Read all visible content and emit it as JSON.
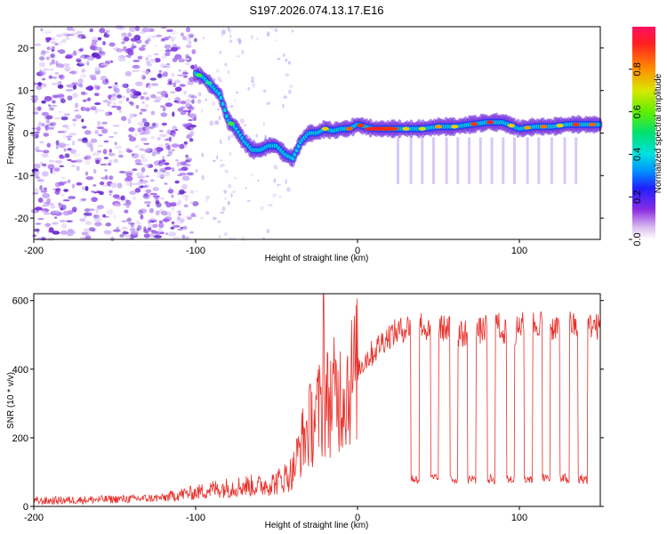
{
  "page_title": "S197.2026.074.13.17.E16",
  "chart_data": [
    {
      "type": "heatmap",
      "name": "spectrogram",
      "title": "S197.2026.074.13.17.E16",
      "xlabel": "Height of straight line (km)",
      "ylabel": "Frequency (Hz)",
      "xlim": [
        -200,
        150
      ],
      "ylim": [
        -25,
        25
      ],
      "x_ticks": [
        -200,
        -100,
        0,
        100
      ],
      "y_ticks": [
        -20,
        -10,
        0,
        10,
        20
      ],
      "colorbar": {
        "label": "Normalized spectral amplitude",
        "range": [
          0,
          1
        ],
        "ticks": [
          0.0,
          0.2,
          0.4,
          0.6,
          0.8
        ]
      },
      "ridge": {
        "description": "dominant frequency track",
        "x": [
          -100,
          -95,
          -90,
          -85,
          -80,
          -75,
          -70,
          -65,
          -60,
          -55,
          -50,
          -45,
          -40,
          -35,
          -30,
          -25,
          -20,
          -15,
          -10,
          -5,
          0,
          10,
          20,
          30,
          40,
          50,
          60,
          70,
          80,
          90,
          100,
          110,
          120,
          130,
          140,
          150
        ],
        "freq": [
          14,
          13,
          11,
          9,
          3,
          1,
          -2,
          -4,
          -4,
          -3,
          -3,
          -5,
          -6,
          -2,
          0,
          0,
          1,
          0.5,
          1,
          1,
          2,
          1,
          1,
          1,
          1,
          1.5,
          1.5,
          2,
          2.5,
          2.5,
          1,
          1.5,
          1.5,
          2,
          2,
          2
        ]
      }
    },
    {
      "type": "line",
      "name": "snr",
      "xlabel": "Height of straight line (km)",
      "ylabel": "SNR (10 * v/v)",
      "xlim": [
        -200,
        150
      ],
      "ylim": [
        0,
        620
      ],
      "x_ticks": [
        -200,
        -100,
        0,
        100
      ],
      "y_ticks": [
        0,
        200,
        400,
        600
      ],
      "series": [
        {
          "name": "SNR",
          "color": "#e8302a",
          "x": [
            -200,
            -180,
            -160,
            -140,
            -120,
            -110,
            -100,
            -90,
            -80,
            -70,
            -60,
            -50,
            -40,
            -35,
            -30,
            -25,
            -20,
            -15,
            -10,
            -5,
            0,
            5,
            10,
            15,
            20,
            25,
            30,
            35,
            40,
            45,
            50,
            55,
            60,
            65,
            70,
            75,
            80,
            85,
            90,
            95,
            100,
            105,
            110,
            115,
            120,
            125,
            130,
            135,
            140,
            145,
            150
          ],
          "values": [
            15,
            18,
            20,
            22,
            25,
            35,
            40,
            50,
            55,
            60,
            60,
            70,
            100,
            180,
            230,
            270,
            300,
            320,
            330,
            360,
            400,
            430,
            450,
            480,
            500,
            510,
            520,
            540,
            530,
            500,
            520,
            520,
            510,
            500,
            520,
            510,
            520,
            540,
            510,
            500,
            520,
            540,
            530,
            540,
            520,
            530,
            540,
            520,
            510,
            530,
            520
          ]
        }
      ],
      "dropouts": {
        "description": "periodic drops to low SNR",
        "x": [
          33,
          38,
          45,
          50,
          57,
          62,
          68,
          73,
          80,
          85,
          92,
          97,
          103,
          108,
          114,
          119,
          125,
          131,
          136,
          142
        ],
        "low_value": 80
      },
      "spike": {
        "x": -21,
        "value": 620
      }
    }
  ]
}
